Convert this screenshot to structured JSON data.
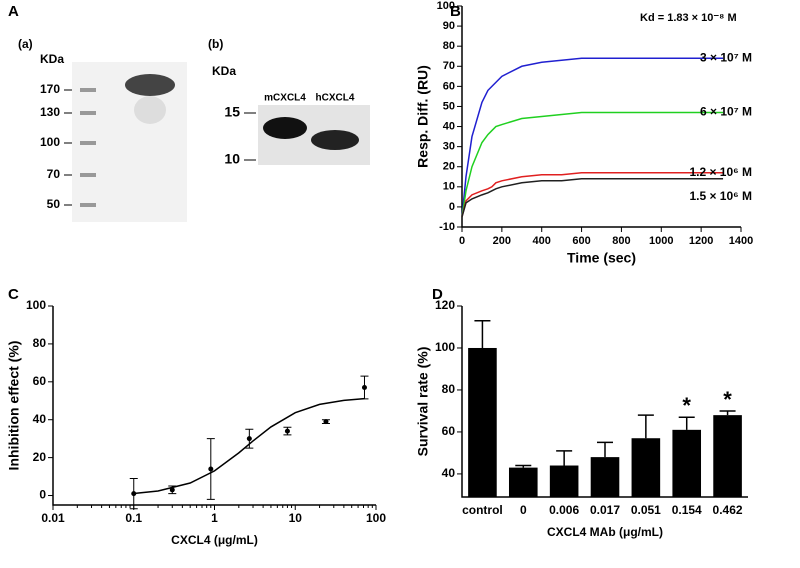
{
  "gel": {
    "panel": "A",
    "sub_a": "(a)",
    "sub_b": "(b)",
    "unit_a": "KDa",
    "unit_b": "KDa",
    "markers_a": [
      170,
      130,
      100,
      70,
      50
    ],
    "markers_b": [
      15,
      10
    ],
    "lanes_b": [
      "mCXCL4",
      "hCXCL4"
    ]
  },
  "chart_data": [
    {
      "type": "line",
      "panel": "B",
      "annotation": "Kd = 1.83 × 10⁻⁸ M",
      "xlabel": "Time (sec)",
      "ylabel": "Resp. Diff. (RU)",
      "x": [
        0,
        20,
        50,
        100,
        130,
        150,
        170,
        200,
        300,
        400,
        500,
        600,
        800,
        1000,
        1310
      ],
      "series": [
        {
          "name": "3 × 10⁷ M",
          "color": "#2020d0",
          "values": [
            -5,
            15,
            35,
            52,
            58,
            60,
            62,
            65,
            70,
            72,
            73,
            74,
            74,
            74,
            74
          ]
        },
        {
          "name": "6 × 10⁷ M",
          "color": "#20d020",
          "values": [
            -5,
            8,
            20,
            32,
            36,
            38,
            40,
            41,
            44,
            45,
            46,
            47,
            47,
            47,
            47
          ]
        },
        {
          "name": "1.2 × 10⁶ M",
          "color": "#e02020",
          "values": [
            -5,
            3,
            6,
            8,
            9,
            10,
            12,
            13,
            15,
            16,
            16,
            17,
            17,
            17,
            17
          ]
        },
        {
          "name": "1.5 × 10⁶ M",
          "color": "#202020",
          "values": [
            -5,
            2,
            4,
            6,
            7,
            8,
            9,
            10,
            12,
            13,
            13,
            14,
            14,
            14,
            14
          ]
        }
      ],
      "xlim": [
        0,
        1400
      ],
      "xticks": [
        0,
        200,
        400,
        600,
        800,
        1000,
        1200,
        1400
      ],
      "ylim": [
        -10,
        100
      ],
      "yticks": [
        -10,
        0,
        10,
        20,
        30,
        40,
        50,
        60,
        70,
        80,
        90,
        100
      ]
    },
    {
      "type": "scatter",
      "panel": "C",
      "xlabel": "CXCL4 (μg/mL)",
      "ylabel": "Inhibition effect (%)",
      "log_x": true,
      "color": "#000000",
      "x": [
        0.1,
        0.3,
        0.9,
        2.7,
        8,
        24,
        72
      ],
      "values": [
        1,
        3,
        14,
        30,
        34,
        39,
        57
      ],
      "errors": [
        8,
        2,
        16,
        5,
        2,
        1,
        6
      ],
      "fit": {
        "x": [
          0.1,
          0.2,
          0.5,
          1,
          2,
          3,
          5,
          10,
          20,
          40,
          72
        ],
        "values": [
          1.07,
          2.4,
          6.6,
          13,
          22.5,
          28.8,
          36.2,
          43.7,
          48.1,
          50.2,
          51.1
        ]
      },
      "xlim": [
        0.01,
        100
      ],
      "xticks": [
        0.01,
        0.1,
        1,
        10,
        100
      ],
      "ylim": [
        -5,
        100
      ],
      "yticks": [
        0,
        20,
        40,
        60,
        80,
        100
      ]
    },
    {
      "type": "bar",
      "panel": "D",
      "xlabel": "CXCL4 MAb (μg/mL)",
      "ylabel": "Survival rate (%)",
      "color": "#000000",
      "categories": [
        "control",
        "0",
        "0.006",
        "0.017",
        "0.051",
        "0.154",
        "0.462"
      ],
      "values": [
        100,
        43,
        44,
        48,
        57,
        61,
        68
      ],
      "errors": [
        13,
        1,
        7,
        7,
        11,
        6,
        2
      ],
      "annotations": [
        null,
        null,
        null,
        null,
        null,
        "*",
        "*"
      ],
      "ylim": [
        29,
        120
      ],
      "yticks": [
        40,
        60,
        80,
        100,
        120
      ]
    }
  ]
}
